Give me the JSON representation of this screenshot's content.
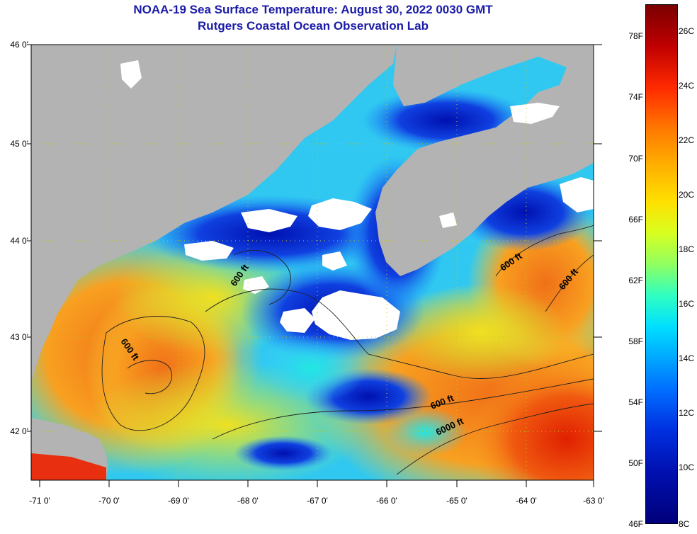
{
  "header": {
    "title": "NOAA-19 Sea Surface Temperature:  August 30, 2022 0030 GMT",
    "subtitle": "Rutgers Coastal Ocean Observation Lab"
  },
  "map": {
    "latitude_labels": [
      "46 0'",
      "45 0'",
      "44 0'",
      "43 0'",
      "42 0'"
    ],
    "longitude_labels": [
      "-71 0'",
      "-70 0'",
      "-69 0'",
      "-68 0'",
      "-67 0'",
      "-66 0'",
      "-65 0'",
      "-64 0'",
      "-63 0'"
    ],
    "contour_labels": [
      "600 ft",
      "600 ft",
      "600 ft",
      "600 ft",
      "600 ft",
      "6000 ft"
    ],
    "colors": {
      "land": "#b3b3b3",
      "cloud": "#ffffff",
      "warm": "#f08a20",
      "cool": "#30d0f0",
      "cold": "#0a2ad8"
    }
  },
  "colorbar": {
    "fahrenheit_labels": [
      "78F",
      "74F",
      "70F",
      "66F",
      "62F",
      "58F",
      "54F",
      "50F",
      "46F"
    ],
    "celsius_labels": [
      "26C",
      "24C",
      "22C",
      "20C",
      "18C",
      "16C",
      "14C",
      "12C",
      "10C",
      "8C"
    ]
  }
}
